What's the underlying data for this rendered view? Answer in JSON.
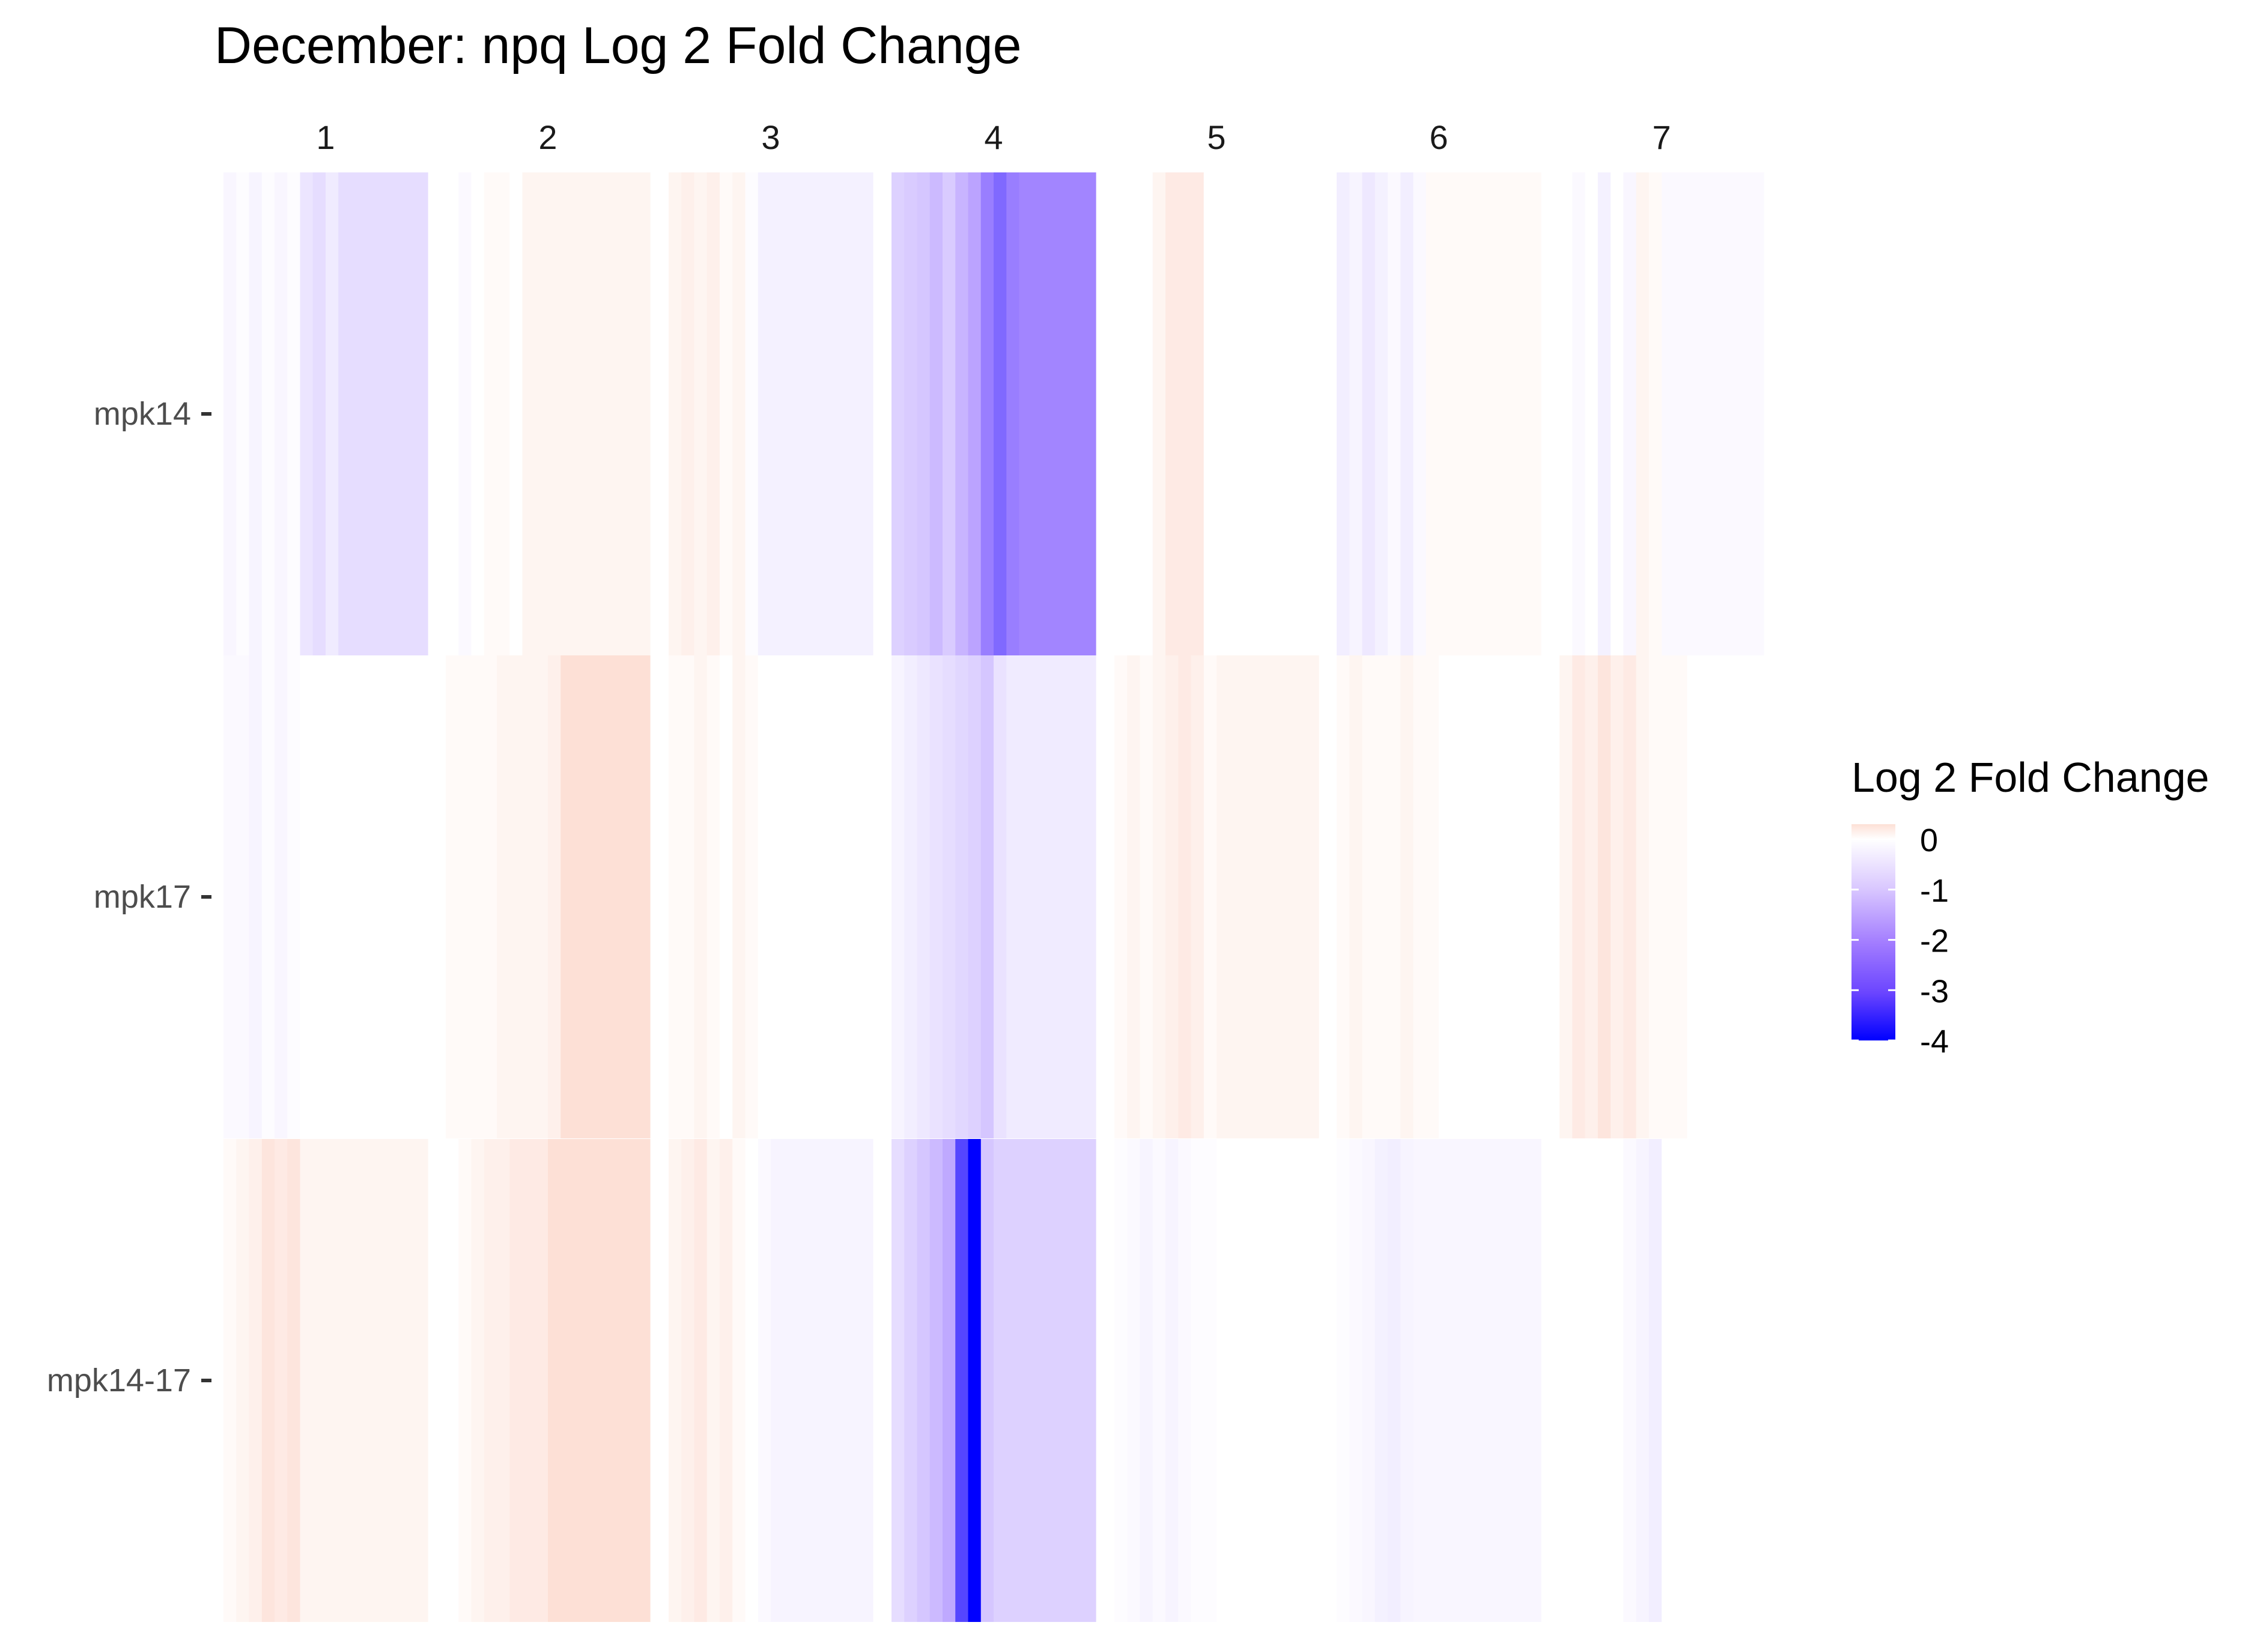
{
  "chart_data": {
    "type": "heatmap",
    "title": "December: npq Log 2 Fold Change",
    "facets": [
      "1",
      "2",
      "3",
      "4",
      "5",
      "6",
      "7"
    ],
    "rows": [
      "mpk14",
      "mpk17",
      "mpk14-17"
    ],
    "legend": {
      "title": "Log 2 Fold Change",
      "ticks": [
        "0",
        "-1",
        "-2",
        "-3",
        "-4"
      ],
      "range": [
        -4,
        0.3
      ],
      "colors": {
        "low": "#0000ff",
        "mid": "#ffffff",
        "high": "#fde0d6"
      }
    },
    "cells": [
      {
        "row": "mpk14",
        "facet": "1",
        "values": [
          -0.15,
          -0.05,
          -0.2,
          -0.05,
          -0.15,
          -0.05,
          -0.45,
          -0.6,
          -0.35,
          -0.6,
          -0.6,
          -0.6,
          -0.6,
          -0.6,
          -0.6,
          -0.6
        ]
      },
      {
        "row": "mpk14",
        "facet": "2",
        "values": [
          0.0,
          -0.1,
          0.0,
          0.05,
          0.05,
          0.0,
          0.1,
          0.1,
          0.1,
          0.1,
          0.1,
          0.1,
          0.1,
          0.1,
          0.1,
          0.1
        ]
      },
      {
        "row": "mpk14",
        "facet": "3",
        "values": [
          0.1,
          0.15,
          0.1,
          0.15,
          0.05,
          0.1,
          -0.05,
          -0.25,
          -0.25,
          -0.25,
          -0.25,
          -0.25,
          -0.25,
          -0.25,
          -0.25,
          -0.25
        ]
      },
      {
        "row": "mpk14",
        "facet": "4",
        "values": [
          -0.8,
          -0.9,
          -1.0,
          -1.2,
          -0.9,
          -1.3,
          -1.6,
          -2.2,
          -2.5,
          -2.2,
          -2.1,
          -2.1,
          -2.1,
          -2.1,
          -2.1,
          -2.1
        ]
      },
      {
        "row": "mpk14",
        "facet": "5",
        "values": [
          0.0,
          0.0,
          0.0,
          0.1,
          0.2,
          0.2,
          0.2,
          0.0,
          0.0,
          0.0,
          0.0,
          0.0,
          0.0,
          0.0,
          0.0,
          0.0
        ]
      },
      {
        "row": "mpk14",
        "facet": "6",
        "values": [
          -0.3,
          -0.2,
          -0.4,
          -0.25,
          -0.1,
          -0.3,
          -0.1,
          0.05,
          0.05,
          0.05,
          0.05,
          0.05,
          0.05,
          0.05,
          0.05,
          0.05
        ]
      },
      {
        "row": "mpk14",
        "facet": "7",
        "values": [
          0.0,
          -0.1,
          0.0,
          -0.25,
          0.0,
          -0.15,
          0.1,
          0.05,
          -0.1,
          -0.1,
          -0.1,
          -0.1,
          -0.1,
          -0.1,
          -0.1,
          -0.1
        ]
      },
      {
        "row": "mpk17",
        "facet": "1",
        "values": [
          -0.1,
          -0.1,
          -0.2,
          -0.05,
          -0.15,
          -0.05,
          0.0,
          0.0,
          0.0,
          0.0,
          0.0,
          0.0,
          0.0,
          0.0,
          0.0,
          0.0
        ]
      },
      {
        "row": "mpk17",
        "facet": "2",
        "values": [
          0.05,
          0.05,
          0.05,
          0.05,
          0.1,
          0.1,
          0.1,
          0.1,
          0.15,
          0.3,
          0.3,
          0.3,
          0.3,
          0.3,
          0.3,
          0.3
        ]
      },
      {
        "row": "mpk17",
        "facet": "3",
        "values": [
          0.05,
          0.05,
          0.1,
          0.05,
          0.0,
          0.1,
          0.05,
          0.0,
          0.0,
          0.0,
          0.0,
          0.0,
          0.0,
          0.0,
          0.0,
          0.0
        ]
      },
      {
        "row": "mpk17",
        "facet": "4",
        "values": [
          -0.2,
          -0.3,
          -0.4,
          -0.5,
          -0.6,
          -0.7,
          -0.8,
          -1.0,
          -0.5,
          -0.35,
          -0.35,
          -0.35,
          -0.35,
          -0.35,
          -0.35,
          -0.35
        ]
      },
      {
        "row": "mpk17",
        "facet": "5",
        "values": [
          0.05,
          0.1,
          0.05,
          0.1,
          0.15,
          0.2,
          0.15,
          0.05,
          0.1,
          0.1,
          0.1,
          0.1,
          0.1,
          0.1,
          0.1,
          0.1
        ]
      },
      {
        "row": "mpk17",
        "facet": "6",
        "values": [
          0.05,
          0.1,
          0.05,
          0.05,
          0.05,
          0.1,
          0.05,
          0.05,
          0.0,
          0.0,
          0.0,
          0.0,
          0.0,
          0.0,
          0.0,
          0.0
        ]
      },
      {
        "row": "mpk17",
        "facet": "7",
        "values": [
          0.1,
          0.2,
          0.15,
          0.25,
          0.15,
          0.2,
          0.1,
          0.05,
          0.05,
          0.05,
          0.0,
          0.0,
          0.0,
          0.0,
          0.0,
          0.0
        ]
      },
      {
        "row": "mpk14-17",
        "facet": "1",
        "values": [
          0.05,
          0.1,
          0.15,
          0.25,
          0.2,
          0.25,
          0.1,
          0.1,
          0.1,
          0.1,
          0.1,
          0.1,
          0.1,
          0.1,
          0.1,
          0.1
        ]
      },
      {
        "row": "mpk14-17",
        "facet": "2",
        "values": [
          0.0,
          0.05,
          0.1,
          0.15,
          0.15,
          0.2,
          0.2,
          0.2,
          0.3,
          0.3,
          0.3,
          0.3,
          0.3,
          0.3,
          0.3,
          0.3
        ]
      },
      {
        "row": "mpk14-17",
        "facet": "3",
        "values": [
          0.1,
          0.15,
          0.2,
          0.1,
          0.15,
          0.05,
          0.0,
          -0.1,
          -0.2,
          -0.2,
          -0.2,
          -0.2,
          -0.2,
          -0.2,
          -0.2,
          -0.2
        ]
      },
      {
        "row": "mpk14-17",
        "facet": "4",
        "values": [
          -0.6,
          -0.8,
          -1.0,
          -1.2,
          -1.5,
          -3.0,
          -4.0,
          -1.0,
          -0.8,
          -0.8,
          -0.8,
          -0.8,
          -0.8,
          -0.8,
          -0.8,
          -0.8
        ]
      },
      {
        "row": "mpk14-17",
        "facet": "5",
        "values": [
          -0.05,
          -0.1,
          -0.2,
          -0.1,
          -0.2,
          -0.1,
          -0.05,
          -0.05,
          0.0,
          0.0,
          0.0,
          0.0,
          0.0,
          0.0,
          0.0,
          0.0
        ]
      },
      {
        "row": "mpk14-17",
        "facet": "6",
        "values": [
          -0.05,
          -0.1,
          -0.15,
          -0.25,
          -0.3,
          -0.2,
          -0.15,
          -0.15,
          -0.15,
          -0.15,
          -0.15,
          -0.15,
          -0.15,
          -0.15,
          -0.15,
          -0.15
        ]
      },
      {
        "row": "mpk14-17",
        "facet": "7",
        "values": [
          0.0,
          0.0,
          0.0,
          0.0,
          0.0,
          -0.1,
          -0.2,
          -0.3,
          0.0,
          0.0,
          0.0,
          0.0,
          0.0,
          0.0,
          0.0,
          0.0
        ]
      }
    ]
  }
}
